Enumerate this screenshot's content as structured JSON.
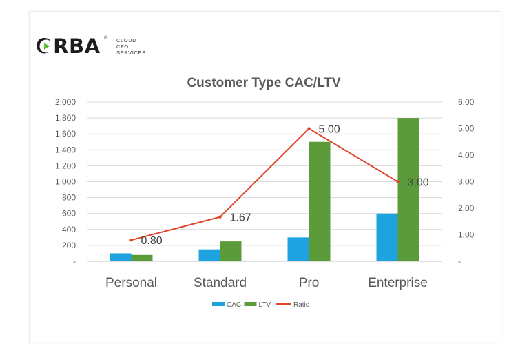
{
  "logo": {
    "name": "ORBA",
    "tagline": [
      "CLOUD",
      "CFO",
      "SERVICES"
    ],
    "registered": "®"
  },
  "colors": {
    "cac": "#1fa3e0",
    "ltv": "#5b9b3a",
    "ratio": "#e0442b",
    "grid": "#d9d9d9",
    "text": "#595959"
  },
  "chart_data": {
    "type": "bar",
    "title": "Customer Type CAC/LTV",
    "categories": [
      "Personal",
      "Standard",
      "Pro",
      "Enterprise"
    ],
    "series": [
      {
        "name": "CAC",
        "type": "bar",
        "axis": "left",
        "values": [
          100,
          150,
          300,
          600
        ]
      },
      {
        "name": "LTV",
        "type": "bar",
        "axis": "left",
        "values": [
          80,
          250,
          1500,
          1800
        ]
      },
      {
        "name": "Ratio",
        "type": "line",
        "axis": "right",
        "values": [
          0.8,
          1.67,
          5.0,
          3.0
        ],
        "labels": [
          "0.80",
          "1.67",
          "5.00",
          "3.00"
        ]
      }
    ],
    "ylim": [
      0,
      2000
    ],
    "y2lim": [
      0,
      6
    ],
    "yticks": [
      "-",
      "200",
      "400",
      "600",
      "800",
      "1,000",
      "1,200",
      "1,400",
      "1,600",
      "1,800",
      "2,000"
    ],
    "y2ticks": [
      "-",
      "1.00",
      "2.00",
      "3.00",
      "4.00",
      "5.00",
      "6.00"
    ],
    "grid": true,
    "legend": "bottom"
  }
}
